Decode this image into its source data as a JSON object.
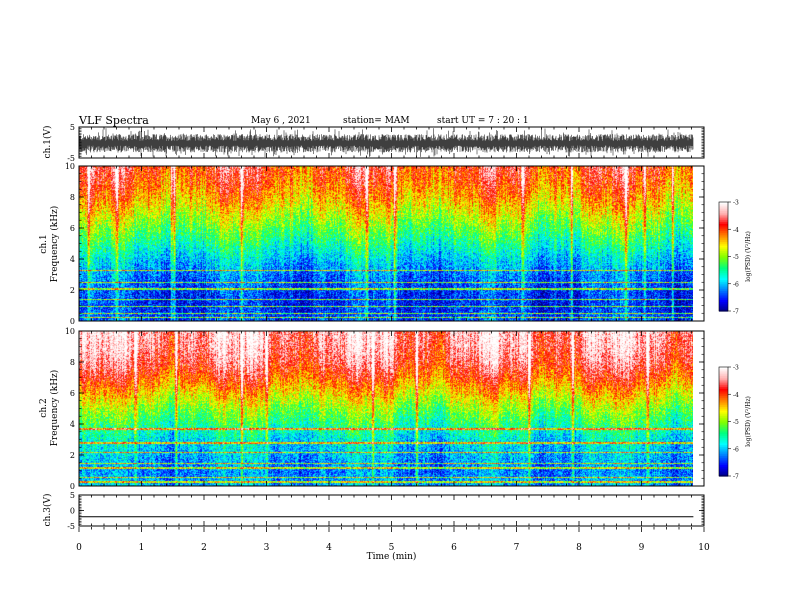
{
  "header": {
    "title": "VLF Spectra",
    "date": "May 6 , 2021",
    "station": "station= MAM",
    "start": "start UT = 7 : 20 : 1"
  },
  "colorbar": {
    "label": "log(PSD) (V²/Hz)",
    "ticks": [
      "-3",
      "-4",
      "-5",
      "-6",
      "-7"
    ],
    "colors": [
      "#000080",
      "#0000ff",
      "#0080ff",
      "#00ffff",
      "#00ff80",
      "#80ff00",
      "#ffff00",
      "#ff8000",
      "#ff0000",
      "#ffb0b0",
      "#ffffff"
    ]
  },
  "chart_data": [
    {
      "type": "line",
      "panel": "ch1-waveform",
      "ylabel": "ch.1(V)",
      "xlim": [
        0,
        10
      ],
      "ylim": [
        -5,
        5
      ],
      "yticks": [
        "5",
        "-5"
      ],
      "end_min": 9.83,
      "description_values": "dense noisy waveform oscillating roughly between -3 and +2 V over the full record"
    },
    {
      "type": "heatmap",
      "panel": "ch1-spectrogram",
      "ylabel": "ch.1 Frequency (kHz)",
      "xlim": [
        0,
        10
      ],
      "ylim": [
        0,
        10
      ],
      "yticks": [
        "0",
        "2",
        "4",
        "6",
        "8",
        "10"
      ],
      "zlim": [
        -7,
        -3
      ],
      "end_min": 9.83,
      "psd_profile_khz": [
        0,
        1,
        2,
        3,
        4,
        5,
        6,
        7,
        8,
        9,
        10
      ],
      "psd_profile_log": [
        -6.3,
        -6.5,
        -6.4,
        -6.2,
        -5.9,
        -5.5,
        -5.1,
        -4.7,
        -4.3,
        -4.0,
        -3.8
      ],
      "line_freqs_khz": [
        0.25,
        0.5,
        0.95,
        1.4,
        2.1,
        2.5,
        3.3
      ],
      "bursts_min": [
        0.15,
        0.6,
        1.48,
        1.52,
        2.6,
        4.6,
        5.05,
        7.1,
        7.88,
        8.75,
        9.05,
        9.5
      ]
    },
    {
      "type": "heatmap",
      "panel": "ch2-spectrogram",
      "ylabel": "ch.2 Frequency (kHz)",
      "xlim": [
        0,
        10
      ],
      "ylim": [
        0,
        10
      ],
      "yticks": [
        "0",
        "2",
        "4",
        "6",
        "8",
        "10"
      ],
      "zlim": [
        -7,
        -3
      ],
      "end_min": 9.83,
      "psd_profile_khz": [
        0,
        1,
        2,
        3,
        4,
        5,
        6,
        7,
        8,
        9,
        10
      ],
      "psd_profile_log": [
        -6.0,
        -6.2,
        -6.0,
        -5.8,
        -5.4,
        -5.0,
        -4.5,
        -4.0,
        -3.6,
        -3.4,
        -3.3
      ],
      "line_freqs_khz": [
        0.3,
        0.6,
        1.2,
        1.5,
        2.2,
        2.8,
        3.7
      ],
      "bursts_min": [
        0.9,
        1.55,
        2.6,
        3.0,
        4.7,
        5.4,
        7.2,
        7.9,
        9.1
      ]
    },
    {
      "type": "line",
      "panel": "ch3-waveform",
      "ylabel": "ch.3(V)",
      "xlabel": "Time (min)",
      "xlim": [
        0,
        10
      ],
      "ylim": [
        -5,
        5
      ],
      "yticks": [
        "5",
        "0",
        "-5"
      ],
      "xticks": [
        "0",
        "1",
        "2",
        "3",
        "4",
        "5",
        "6",
        "7",
        "8",
        "9",
        "10"
      ],
      "end_min": 9.83,
      "values": [
        -2,
        -2
      ]
    }
  ]
}
